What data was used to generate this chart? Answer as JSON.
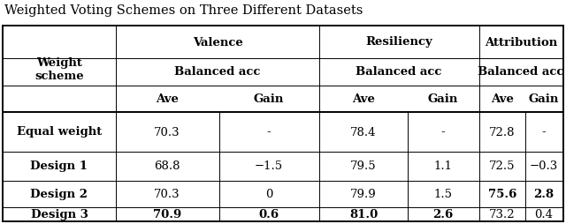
{
  "title": "Weighted Voting Schemes on Three Different Datasets",
  "background_color": "#ffffff",
  "rows": [
    {
      "label": "Equal weight",
      "bold_label": true,
      "vals": [
        "70.3",
        "-",
        "78.4",
        "-",
        "72.8",
        "-"
      ],
      "bold_vals": [
        false,
        false,
        false,
        false,
        false,
        false
      ]
    },
    {
      "label": "Design 1",
      "bold_label": true,
      "vals": [
        "68.8",
        "−1.5",
        "79.5",
        "1.1",
        "72.5",
        "−0.3"
      ],
      "bold_vals": [
        false,
        false,
        false,
        false,
        false,
        false
      ]
    },
    {
      "label": "Design 2",
      "bold_label": true,
      "vals": [
        "70.3",
        "0",
        "79.9",
        "1.5",
        "75.6",
        "2.8"
      ],
      "bold_vals": [
        false,
        false,
        false,
        false,
        true,
        true
      ]
    },
    {
      "label": "Design 3",
      "bold_label": true,
      "vals": [
        "70.9",
        "0.6",
        "81.0",
        "2.6",
        "73.2",
        "0.4"
      ],
      "bold_vals": [
        true,
        true,
        true,
        true,
        false,
        false
      ]
    }
  ],
  "title_fontsize": 10.5,
  "header_fontsize": 9.5,
  "data_fontsize": 9.5,
  "lw_thick": 1.4,
  "lw_thin": 0.7
}
